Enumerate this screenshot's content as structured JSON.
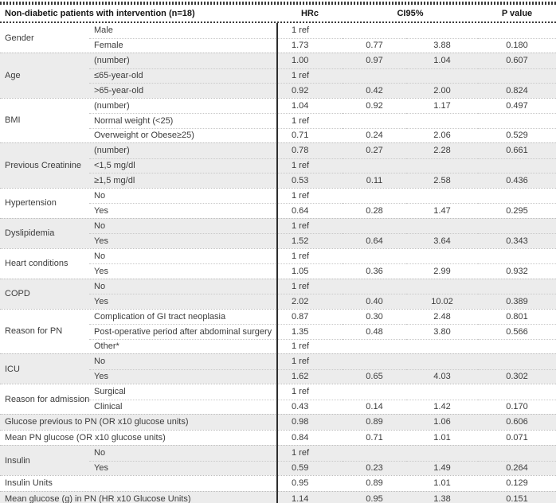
{
  "header": {
    "title": "Non-diabetic patients with intervention (n=18)",
    "col_hr": "HRc",
    "col_ci": "CI95%",
    "col_p": "P value"
  },
  "colors": {
    "band": "#ececec",
    "rule": "#3a3a3a"
  },
  "table": {
    "groups": [
      {
        "category": "Gender",
        "shaded": false,
        "rows": [
          {
            "label": "Male",
            "hr": "1 ref",
            "ci_low": "",
            "ci_high": "",
            "p": ""
          },
          {
            "label": "Female",
            "hr": "1.73",
            "ci_low": "0.77",
            "ci_high": "3.88",
            "p": "0.180"
          }
        ]
      },
      {
        "category": "Age",
        "shaded": true,
        "rows": [
          {
            "label": "(number)",
            "hr": "1.00",
            "ci_low": "0.97",
            "ci_high": "1.04",
            "p": "0.607"
          },
          {
            "label": "≤65-year-old",
            "hr": "1 ref",
            "ci_low": "",
            "ci_high": "",
            "p": ""
          },
          {
            "label": ">65-year-old",
            "hr": "0.92",
            "ci_low": "0.42",
            "ci_high": "2.00",
            "p": "0.824"
          }
        ]
      },
      {
        "category": "BMI",
        "shaded": false,
        "rows": [
          {
            "label": "(number)",
            "hr": "1.04",
            "ci_low": "0.92",
            "ci_high": "1.17",
            "p": "0.497"
          },
          {
            "label": "Normal weight (<25)",
            "hr": "1 ref",
            "ci_low": "",
            "ci_high": "",
            "p": ""
          },
          {
            "label": "Overweight or Obese≥25)",
            "hr": "0.71",
            "ci_low": "0.24",
            "ci_high": "2.06",
            "p": "0.529"
          }
        ]
      },
      {
        "category": "Previous Creatinine",
        "shaded": true,
        "rows": [
          {
            "label": "(number)",
            "hr": "0.78",
            "ci_low": "0.27",
            "ci_high": "2.28",
            "p": "0.661"
          },
          {
            "label": "<1,5 mg/dl",
            "hr": "1 ref",
            "ci_low": "",
            "ci_high": "",
            "p": ""
          },
          {
            "label": "≥1,5 mg/dl",
            "hr": "0.53",
            "ci_low": "0.11",
            "ci_high": "2.58",
            "p": "0.436"
          }
        ]
      },
      {
        "category": "Hypertension",
        "shaded": false,
        "rows": [
          {
            "label": "No",
            "hr": "1 ref",
            "ci_low": "",
            "ci_high": "",
            "p": ""
          },
          {
            "label": "Yes",
            "hr": "0.64",
            "ci_low": "0.28",
            "ci_high": "1.47",
            "p": "0.295"
          }
        ]
      },
      {
        "category": "Dyslipidemia",
        "shaded": true,
        "rows": [
          {
            "label": "No",
            "hr": "1 ref",
            "ci_low": "",
            "ci_high": "",
            "p": ""
          },
          {
            "label": "Yes",
            "hr": "1.52",
            "ci_low": "0.64",
            "ci_high": "3.64",
            "p": "0.343"
          }
        ]
      },
      {
        "category": "Heart conditions",
        "shaded": false,
        "rows": [
          {
            "label": "No",
            "hr": "1 ref",
            "ci_low": "",
            "ci_high": "",
            "p": ""
          },
          {
            "label": "Yes",
            "hr": "1.05",
            "ci_low": "0.36",
            "ci_high": "2.99",
            "p": "0.932"
          }
        ]
      },
      {
        "category": "COPD",
        "shaded": true,
        "rows": [
          {
            "label": "No",
            "hr": "1 ref",
            "ci_low": "",
            "ci_high": "",
            "p": ""
          },
          {
            "label": "Yes",
            "hr": "2.02",
            "ci_low": "0.40",
            "ci_high": "10.02",
            "p": "0.389"
          }
        ]
      },
      {
        "category": "Reason for PN",
        "shaded": false,
        "rows": [
          {
            "label": "Complication of GI tract neoplasia",
            "hr": "0.87",
            "ci_low": "0.30",
            "ci_high": "2.48",
            "p": "0.801"
          },
          {
            "label": "Post-operative period after abdominal surgery",
            "hr": "1.35",
            "ci_low": "0.48",
            "ci_high": "3.80",
            "p": "0.566"
          },
          {
            "label": "Other*",
            "hr": "1 ref",
            "ci_low": "",
            "ci_high": "",
            "p": ""
          }
        ]
      },
      {
        "category": "ICU",
        "shaded": true,
        "rows": [
          {
            "label": "No",
            "hr": "1 ref",
            "ci_low": "",
            "ci_high": "",
            "p": ""
          },
          {
            "label": "Yes",
            "hr": "1.62",
            "ci_low": "0.65",
            "ci_high": "4.03",
            "p": "0.302"
          }
        ]
      },
      {
        "category": "Reason for admission",
        "shaded": false,
        "rows": [
          {
            "label": "Surgical",
            "hr": "1 ref",
            "ci_low": "",
            "ci_high": "",
            "p": ""
          },
          {
            "label": "Clinical",
            "hr": "0.43",
            "ci_low": "0.14",
            "ci_high": "1.42",
            "p": "0.170"
          }
        ]
      },
      {
        "category": null,
        "span": true,
        "shaded": true,
        "rows": [
          {
            "label": "Glucose previous to PN (OR x10 glucose units)",
            "hr": "0.98",
            "ci_low": "0.89",
            "ci_high": "1.06",
            "p": "0.606"
          }
        ]
      },
      {
        "category": null,
        "span": true,
        "shaded": false,
        "rows": [
          {
            "label": "Mean PN glucose (OR x10 glucose units)",
            "hr": "0.84",
            "ci_low": "0.71",
            "ci_high": "1.01",
            "p": "0.071"
          }
        ]
      },
      {
        "category": "Insulin",
        "shaded": true,
        "rows": [
          {
            "label": "No",
            "hr": "1 ref",
            "ci_low": "",
            "ci_high": "",
            "p": ""
          },
          {
            "label": "Yes",
            "hr": "0.59",
            "ci_low": "0.23",
            "ci_high": "1.49",
            "p": "0.264"
          }
        ]
      },
      {
        "category": null,
        "span": true,
        "shaded": false,
        "rows": [
          {
            "label": "Insulin Units",
            "hr": "0.95",
            "ci_low": "0.89",
            "ci_high": "1.01",
            "p": "0.129"
          }
        ]
      },
      {
        "category": null,
        "span": true,
        "shaded": true,
        "rows": [
          {
            "label": "Mean glucose (g) in PN (HR x10 Glucose Units)",
            "hr": "1.14",
            "ci_low": "0.95",
            "ci_high": "1.38",
            "p": "0.151"
          }
        ]
      }
    ]
  }
}
